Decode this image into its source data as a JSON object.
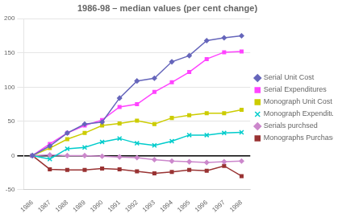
{
  "chart_data": {
    "type": "line",
    "title": "1986-98 – median values (per cent change)",
    "x": [
      1986,
      1987,
      1988,
      1989,
      1990,
      1991,
      1992,
      1993,
      1994,
      1995,
      1996,
      1997,
      1998
    ],
    "series": [
      {
        "name": "Serial Unit Cost",
        "color": "#6666bb",
        "marker": "diamond",
        "values": [
          0,
          14,
          33,
          46,
          49,
          84,
          109,
          113,
          137,
          146,
          168,
          172,
          175
        ]
      },
      {
        "name": "Serial Expenditures",
        "color": "#ff44ff",
        "marker": "square",
        "values": [
          0,
          17,
          33,
          44,
          52,
          71,
          75,
          93,
          107,
          122,
          141,
          151,
          152
        ]
      },
      {
        "name": "Monograph Unit Cost",
        "color": "#cccc00",
        "marker": "square",
        "values": [
          0,
          11,
          24,
          33,
          44,
          47,
          51,
          46,
          55,
          59,
          62,
          62,
          67
        ]
      },
      {
        "name": "Monograph Expenditures",
        "color": "#00cccc",
        "marker": "x",
        "values": [
          0,
          -5,
          10,
          12,
          20,
          25,
          18,
          15,
          21,
          30,
          30,
          33,
          34
        ]
      },
      {
        "name": "Serials purchsed",
        "color": "#cc88cc",
        "marker": "diamond",
        "values": [
          0,
          1,
          0,
          0,
          -1,
          -2,
          -3,
          -6,
          -8,
          -9,
          -10,
          -9,
          -8
        ]
      },
      {
        "name": "Monographs Purchased",
        "color": "#993333",
        "marker": "square",
        "values": [
          0,
          -20,
          -21,
          -21,
          -19,
          -20,
          -23,
          -26,
          -24,
          -21,
          -22,
          -15,
          -30
        ]
      }
    ],
    "xlim": [
      1985.5,
      1998.5
    ],
    "xticks": [
      1986,
      1987,
      1988,
      1989,
      1990,
      1991,
      1992,
      1993,
      1994,
      1995,
      1996,
      1997,
      1998
    ],
    "ylim": [
      -50,
      200
    ],
    "yticks": [
      -50,
      0,
      50,
      100,
      150,
      200
    ],
    "grid": "y",
    "legend": "right"
  }
}
